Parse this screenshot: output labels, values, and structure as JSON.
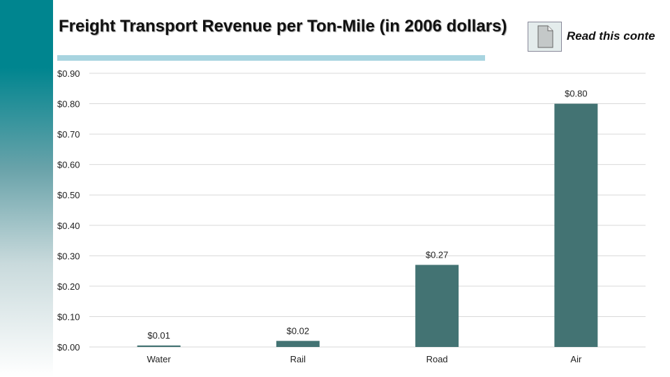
{
  "title": "Freight Transport Revenue per Ton-Mile (in 2006 dollars)",
  "overlay_text": "Read this conte",
  "colors": {
    "bar": "#437373",
    "sidebar": "#00858f",
    "title_underline": "#a8d4e0",
    "grid": "#d9d9d9"
  },
  "chart_data": {
    "type": "bar",
    "title": "Freight Transport Revenue per Ton-Mile (in 2006 dollars)",
    "categories": [
      "Water",
      "Rail",
      "Road",
      "Air"
    ],
    "values": [
      0.005,
      0.02,
      0.27,
      0.8
    ],
    "data_labels": [
      "$0.01",
      "$0.02",
      "$0.27",
      "$0.80"
    ],
    "ylim": [
      0,
      0.9
    ],
    "yticks": [
      0,
      0.1,
      0.2,
      0.3,
      0.4,
      0.5,
      0.6,
      0.7,
      0.8,
      0.9
    ],
    "ytick_labels": [
      "$0.00",
      "$0.10",
      "$0.20",
      "$0.30",
      "$0.40",
      "$0.50",
      "$0.60",
      "$0.70",
      "$0.80",
      "$0.90"
    ],
    "grid": true,
    "legend": "none"
  }
}
